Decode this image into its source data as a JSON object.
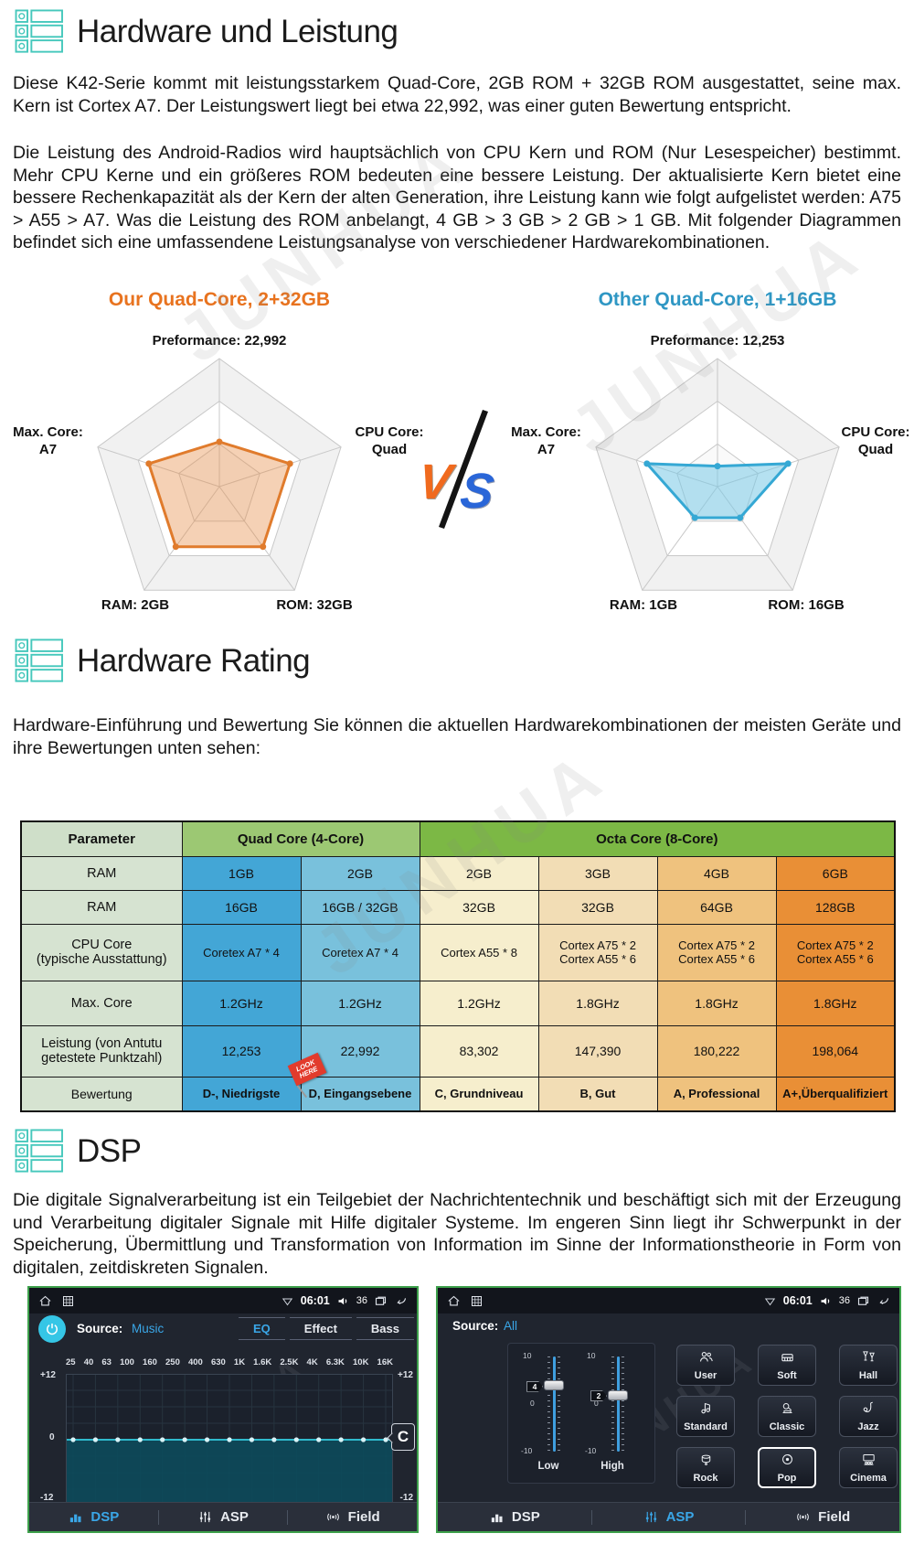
{
  "watermark": "JUNHUA",
  "sections": {
    "hardware": {
      "title": "Hardware und Leistung",
      "para1": "Diese K42-Serie kommt mit leistungsstarkem Quad-Core, 2GB ROM + 32GB ROM ausgestattet, seine max. Kern ist Cortex A7. Der Leistungswert liegt bei etwa 22,992, was einer guten Bewertung entspricht.",
      "para2": "Die Leistung des Android-Radios wird hauptsächlich von CPU Kern und ROM (Nur Lesespeicher) bestimmt. Mehr CPU Kerne und ein größeres ROM bedeuten eine bessere Leistung. Der aktualisierte Kern bietet eine bessere Rechenkapazität als der Kern der alten Generation, ihre Leistung kann wie folgt aufgelistet werden: A75 > A55 > A7. Was die Leistung des ROM anbelangt, 4 GB > 3 GB > 2 GB > 1 GB. Mit folgender Diagrammen befindet sich eine umfassendene Leistungsanalyse von verschiedener Hardwarekombinationen."
    },
    "rating": {
      "title": "Hardware Rating",
      "intro": "Hardware-Einführung und Bewertung Sie können die aktuellen Hardwarekombinationen der meisten Geräte und ihre Bewertungen unten sehen:"
    },
    "dsp": {
      "title": "DSP",
      "para": "Die digitale Signalverarbeitung ist ein Teilgebiet der Nachrichtentechnik und beschäftigt sich mit der Erzeugung und Verarbeitung digitaler Signale mit Hilfe digitaler Systeme. Im engeren Sinn liegt ihr Schwerpunkt in der Speicherung, Übermittlung und Transformation von Information im Sinne der Informationstheorie in Form von digitalen, zeitdiskreten Signalen."
    }
  },
  "vs": {
    "v": "V",
    "s": "S"
  },
  "chart_data": [
    {
      "type": "radar",
      "title": "Our Quad-Core, 2+32GB",
      "title_color": "#e8731f",
      "color": "#e07b2c",
      "fill": "rgba(230,140,70,0.40)",
      "axes": [
        "Preformance",
        "CPU Core",
        "ROM",
        "RAM",
        "Max. Core"
      ],
      "axis_values": [
        "22,992",
        "Quad",
        "32GB",
        "2GB",
        "A7"
      ],
      "values_norm": [
        0.35,
        0.58,
        0.58,
        0.58,
        0.58
      ],
      "rings": [
        0.333,
        0.667,
        1
      ],
      "labels": {
        "top": "Preformance: 22,992",
        "right_1": "CPU Core:",
        "right_2": "Quad",
        "left_1": "Max. Core:",
        "left_2": "A7",
        "bottom_left": "RAM: 2GB",
        "bottom_right": "ROM: 32GB"
      }
    },
    {
      "type": "radar",
      "title": "Other Quad-Core, 1+16GB",
      "title_color": "#2f97c4",
      "color": "#35a8d4",
      "fill": "rgba(120,200,230,0.55)",
      "axes": [
        "Preformance",
        "CPU Core",
        "ROM",
        "RAM",
        "Max. Core"
      ],
      "axis_values": [
        "12,253",
        "Quad",
        "16GB",
        "1GB",
        "A7"
      ],
      "values_norm": [
        0.16,
        0.58,
        0.3,
        0.3,
        0.58
      ],
      "rings": [
        0.333,
        0.667,
        1
      ],
      "labels": {
        "top": "Preformance: 12,253",
        "right_1": "CPU Core:",
        "right_2": "Quad",
        "left_1": "Max. Core:",
        "left_2": "A7",
        "bottom_left": "RAM: 1GB",
        "bottom_right": "ROM: 16GB"
      }
    }
  ],
  "table": {
    "headers": {
      "param": "Parameter",
      "quad": "Quad Core (4-Core)",
      "octa": "Octa Core (8-Core)"
    },
    "rows": [
      {
        "label": "RAM",
        "cells": [
          "1GB",
          "2GB",
          "2GB",
          "3GB",
          "4GB",
          "6GB"
        ]
      },
      {
        "label": "RAM",
        "cells": [
          "16GB",
          "16GB / 32GB",
          "32GB",
          "32GB",
          "64GB",
          "128GB"
        ]
      },
      {
        "label": "CPU Core\n(typische Ausstattung)",
        "cells": [
          "Coretex A7 * 4",
          "Coretex A7 * 4",
          "Cortex A55 * 8",
          "Cortex A75 * 2\nCortex A55 * 6",
          "Cortex A75 * 2\nCortex A55 * 6",
          "Cortex A75 * 2\nCortex A55 * 6"
        ]
      },
      {
        "label": "Max. Core",
        "cells": [
          "1.2GHz",
          "1.2GHz",
          "1.2GHz",
          "1.8GHz",
          "1.8GHz",
          "1.8GHz"
        ]
      },
      {
        "label": "Leistung (von Antutu\ngetestete Punktzahl)",
        "cells": [
          "12,253",
          "22,992",
          "83,302",
          "147,390",
          "180,222",
          "198,064"
        ]
      },
      {
        "label": "Bewertung",
        "cells": [
          "D-, Niedrigste",
          "D, Eingangsebene",
          "C, Grundniveau",
          "B, Gut",
          "A, Professional",
          "A+,Überqualifiziert"
        ],
        "bold": true
      }
    ],
    "badge": "LOOK HERE"
  },
  "screens": {
    "left": {
      "status": {
        "time": "06:01",
        "volume": "36"
      },
      "source_label": "Source:",
      "source_value": "Music",
      "tabs": [
        {
          "label": "EQ",
          "active": true
        },
        {
          "label": "Effect",
          "active": false
        },
        {
          "label": "Bass",
          "active": false
        }
      ],
      "eq": {
        "freqs": [
          "25",
          "40",
          "63",
          "100",
          "160",
          "250",
          "400",
          "630",
          "1K",
          "1.6K",
          "2.5K",
          "4K",
          "6.3K",
          "10K",
          "16K"
        ],
        "values_db": [
          0,
          0,
          0,
          0,
          0,
          0,
          0,
          0,
          0,
          0,
          0,
          0,
          0,
          0,
          0
        ],
        "y_top": "+12",
        "y_mid": "0",
        "y_bottom": "-12",
        "reset_label": "C"
      },
      "bottom_tabs": [
        {
          "label": "DSP",
          "icon": "dsp",
          "active": true
        },
        {
          "label": "ASP",
          "icon": "asp",
          "active": false
        },
        {
          "label": "Field",
          "icon": "field",
          "active": false
        }
      ]
    },
    "right": {
      "status": {
        "time": "06:01",
        "volume": "36"
      },
      "source_label": "Source:",
      "source_value": "All",
      "sliders": {
        "scale_top": "10",
        "scale_mid": "0",
        "scale_bottom": "-10",
        "min": -10,
        "max": 10,
        "items": [
          {
            "label": "Low",
            "value": 4
          },
          {
            "label": "High",
            "value": 2
          }
        ]
      },
      "presets": [
        {
          "label": "User",
          "icon": "user",
          "active": false
        },
        {
          "label": "Soft",
          "icon": "soft",
          "active": false
        },
        {
          "label": "Hall",
          "icon": "hall",
          "active": false
        },
        {
          "label": "Standard",
          "icon": "standard",
          "active": false
        },
        {
          "label": "Classic",
          "icon": "classic",
          "active": false
        },
        {
          "label": "Jazz",
          "icon": "jazz",
          "active": false
        },
        {
          "label": "Rock",
          "icon": "rock",
          "active": false
        },
        {
          "label": "Pop",
          "icon": "pop",
          "active": true
        },
        {
          "label": "Cinema",
          "icon": "cinema",
          "active": false
        }
      ],
      "bottom_tabs": [
        {
          "label": "DSP",
          "icon": "dsp",
          "active": false
        },
        {
          "label": "ASP",
          "icon": "asp",
          "active": true
        },
        {
          "label": "Field",
          "icon": "field",
          "active": false
        }
      ]
    }
  }
}
